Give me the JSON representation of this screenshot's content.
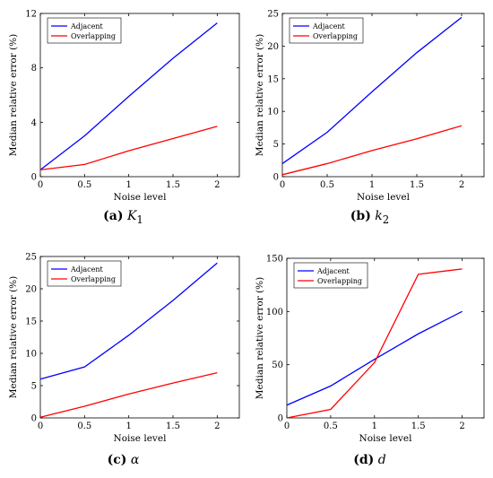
{
  "chart_data": [
    {
      "type": "line",
      "panel": "(a)",
      "caption_symbol": "K",
      "caption_sub": "1",
      "xlabel": "Noise level",
      "ylabel": "Median relative error (%)",
      "xlim": [
        0,
        2.25
      ],
      "ylim": [
        0,
        12
      ],
      "xticks": [
        0,
        0.5,
        1,
        1.5,
        2
      ],
      "xtick_labels": [
        "0",
        "0.5",
        "1",
        "1.5",
        "2"
      ],
      "yticks": [
        0,
        4,
        8,
        12
      ],
      "ytick_labels": [
        "0",
        "4",
        "8",
        "12"
      ],
      "legend": "top-left",
      "x": [
        0,
        0.5,
        1,
        1.5,
        2
      ],
      "series": [
        {
          "name": "Adjacent",
          "color": "#0000ff",
          "values": [
            0.5,
            3.0,
            5.9,
            8.7,
            11.3
          ]
        },
        {
          "name": "Overlapping",
          "color": "#ff0000",
          "values": [
            0.5,
            0.9,
            1.9,
            2.8,
            3.7
          ]
        }
      ]
    },
    {
      "type": "line",
      "panel": "(b)",
      "caption_symbol": "k",
      "caption_sub": "2",
      "xlabel": "Noise level",
      "ylabel": "Median relative error (%)",
      "xlim": [
        0,
        2.25
      ],
      "ylim": [
        0,
        25
      ],
      "xticks": [
        0,
        0.5,
        1,
        1.5,
        2
      ],
      "xtick_labels": [
        "0",
        "0.5",
        "1",
        "1.5",
        "2"
      ],
      "yticks": [
        0,
        5,
        10,
        15,
        20,
        25
      ],
      "ytick_labels": [
        "0",
        "5",
        "10",
        "15",
        "20",
        "25"
      ],
      "legend": "top-left",
      "x": [
        0,
        0.5,
        1,
        1.5,
        2
      ],
      "series": [
        {
          "name": "Adjacent",
          "color": "#0000ff",
          "values": [
            2.0,
            6.8,
            13.0,
            19.0,
            24.4
          ]
        },
        {
          "name": "Overlapping",
          "color": "#ff0000",
          "values": [
            0.3,
            2.0,
            4.0,
            5.8,
            7.8
          ]
        }
      ]
    },
    {
      "type": "line",
      "panel": "(c)",
      "caption_symbol": "α",
      "caption_sub": "",
      "xlabel": "Noise level",
      "ylabel": "Median relative error (%)",
      "xlim": [
        0,
        2.25
      ],
      "ylim": [
        0,
        25
      ],
      "xticks": [
        0,
        0.5,
        1,
        1.5,
        2
      ],
      "xtick_labels": [
        "0",
        "0.5",
        "1",
        "1.5",
        "2"
      ],
      "yticks": [
        0,
        5,
        10,
        15,
        20,
        25
      ],
      "ytick_labels": [
        "0",
        "5",
        "10",
        "15",
        "20",
        "25"
      ],
      "legend": "top-left",
      "x": [
        0,
        0.5,
        1,
        1.5,
        2
      ],
      "series": [
        {
          "name": "Adjacent",
          "color": "#0000ff",
          "values": [
            6.0,
            7.9,
            12.8,
            18.2,
            24.0
          ]
        },
        {
          "name": "Overlapping",
          "color": "#ff0000",
          "values": [
            0.1,
            1.8,
            3.7,
            5.4,
            7.0
          ]
        }
      ]
    },
    {
      "type": "line",
      "panel": "(d)",
      "caption_symbol": "d",
      "caption_sub": "",
      "xlabel": "Noise level",
      "ylabel": "Median relative error (%)",
      "xlim": [
        0,
        2.25
      ],
      "ylim": [
        0,
        150
      ],
      "xticks": [
        0,
        0.5,
        1,
        1.5,
        2
      ],
      "xtick_labels": [
        "0",
        "0.5",
        "1",
        "1.5",
        "2"
      ],
      "yticks": [
        0,
        50,
        100,
        150
      ],
      "ytick_labels": [
        "0",
        "50",
        "100",
        "150"
      ],
      "legend": "top-left",
      "x": [
        0,
        0.5,
        1,
        1.5,
        2
      ],
      "series": [
        {
          "name": "Adjacent",
          "color": "#0000ff",
          "values": [
            12,
            30,
            55,
            79,
            100
          ]
        },
        {
          "name": "Overlapping",
          "color": "#ff0000",
          "values": [
            0,
            8,
            52,
            135,
            140
          ]
        }
      ]
    }
  ]
}
